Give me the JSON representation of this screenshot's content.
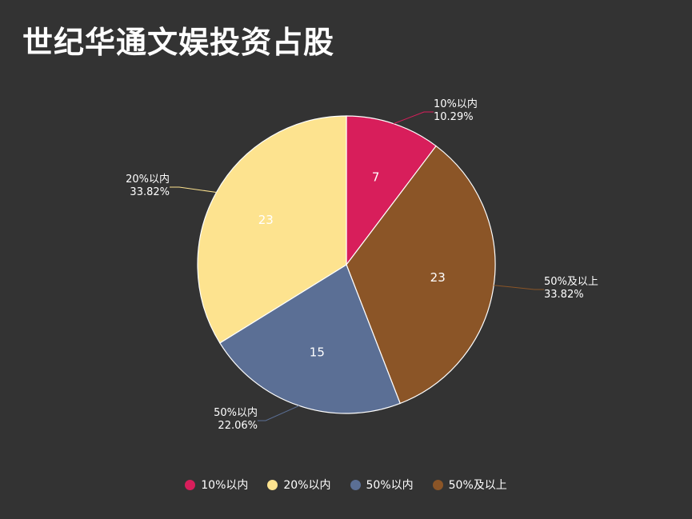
{
  "chart_data": {
    "type": "pie",
    "title": "世纪华通文娱投资占股",
    "categories": [
      "10%以内",
      "50%及以上",
      "50%以内",
      "20%以内"
    ],
    "values": [
      7,
      23,
      15,
      23
    ],
    "percent_labels": [
      "10.29%",
      "33.82%",
      "22.06%",
      "33.82%"
    ],
    "colors": [
      "#d81e5b",
      "#8b5527",
      "#5b6f95",
      "#fde38f"
    ],
    "legend": {
      "position": "bottom",
      "items": [
        {
          "label": "10%以内",
          "color": "#d81e5b"
        },
        {
          "label": "20%以内",
          "color": "#fde38f"
        },
        {
          "label": "50%以内",
          "color": "#5b6f95"
        },
        {
          "label": "50%及以上",
          "color": "#8b5527"
        }
      ]
    }
  }
}
